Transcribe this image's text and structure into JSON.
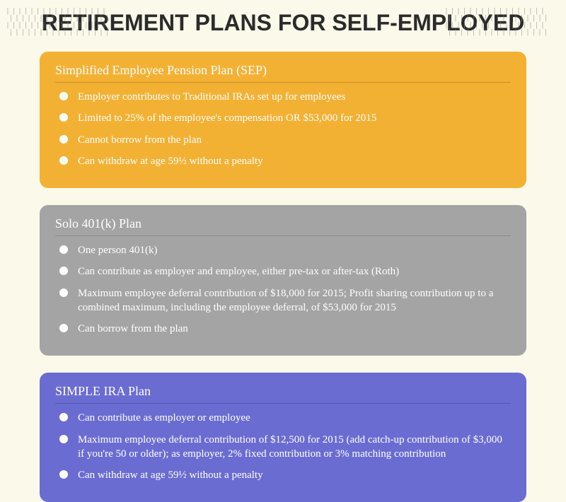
{
  "page": {
    "title": "RETIREMENT PLANS FOR SELF-EMPLOYED",
    "background_color": "#fbf9ea",
    "title_color": "#2b2b2b",
    "title_fontsize": 32,
    "pattern_color": "#8d8d8d"
  },
  "cards": [
    {
      "id": "sep",
      "title": "Simplified Employee Pension Plan (SEP)",
      "bg_color": "#f3b134",
      "text_color": "#ffffff",
      "title_underline_color": "#c98c1f",
      "bullets": [
        "Employer contributes to Traditional IRAs set up for employees",
        "Limited to 25% of the employee's compensation OR $53,000 for 2015",
        "Cannot borrow from the plan",
        "Can withdraw at age 59½ without a penalty"
      ]
    },
    {
      "id": "solo401k",
      "title": "Solo 401(k) Plan",
      "bg_color": "#a4a4a4",
      "text_color": "#ffffff",
      "title_underline_color": "#8a8a8a",
      "bullets": [
        "One person 401(k)",
        "Can contribute as employer and employee, either pre-tax or after-tax (Roth)",
        "Maximum employee deferral contribution of $18,000 for 2015; Profit sharing contribution up to a combined maximum, including the employee deferral, of $53,000 for 2015",
        "Can borrow from the plan"
      ]
    },
    {
      "id": "simpleira",
      "title": "SIMPLE IRA Plan",
      "bg_color": "#6b6cd1",
      "text_color": "#ffffff",
      "title_underline_color": "#5455b0",
      "bullets": [
        "Can contribute as employer or employee",
        "Maximum employee deferral contribution of $12,500 for 2015 (add catch-up contribution of $3,000 if you're 50 or older); as employer, 2% fixed contribution or 3% matching contribution",
        "Can withdraw at age 59½ without a penalty"
      ]
    }
  ]
}
